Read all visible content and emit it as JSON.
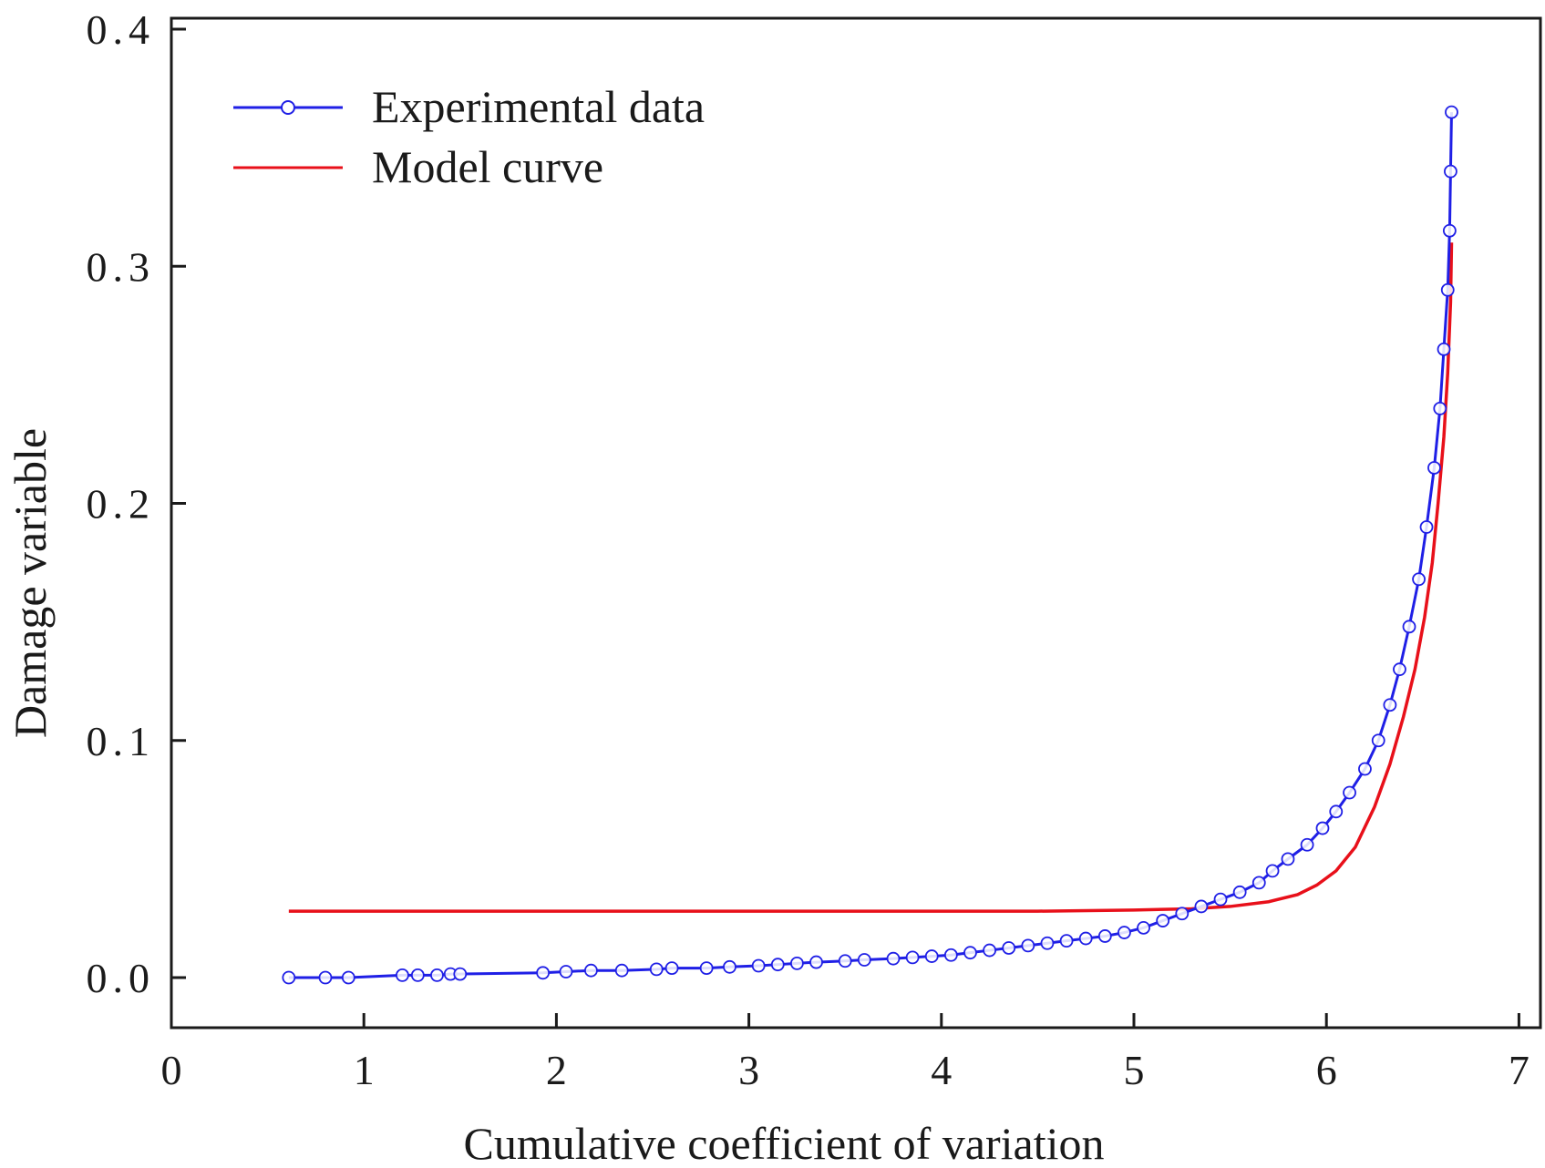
{
  "chart_data": {
    "type": "line",
    "title": "",
    "xlabel": "Cumulative coefficient of variation",
    "ylabel": "Damage  variable",
    "xlim": [
      0,
      7.1
    ],
    "ylim": [
      -0.02,
      0.405
    ],
    "x_ticks": [
      0,
      1,
      2,
      3,
      4,
      5,
      6,
      7
    ],
    "x_tick_labels": [
      "0",
      "1",
      "2",
      "3",
      "4",
      "5",
      "6",
      "7"
    ],
    "y_ticks": [
      0.0,
      0.1,
      0.2,
      0.3,
      0.4
    ],
    "y_tick_labels": [
      "0.0",
      "0.1",
      "0.2",
      "0.3",
      "0.4"
    ],
    "grid": false,
    "legend_position": "top-left",
    "series": [
      {
        "name": "Experimental data",
        "color": "#1f1fe6",
        "marker": "open-circle",
        "x": [
          0.61,
          0.8,
          0.92,
          1.2,
          1.28,
          1.38,
          1.45,
          1.5,
          1.93,
          2.05,
          2.18,
          2.34,
          2.52,
          2.6,
          2.78,
          2.9,
          3.05,
          3.15,
          3.25,
          3.35,
          3.5,
          3.6,
          3.75,
          3.85,
          3.95,
          4.05,
          4.15,
          4.25,
          4.35,
          4.45,
          4.55,
          4.65,
          4.75,
          4.85,
          4.95,
          5.05,
          5.15,
          5.25,
          5.35,
          5.45,
          5.55,
          5.65,
          5.72,
          5.8,
          5.9,
          5.98,
          6.05,
          6.12,
          6.2,
          6.27,
          6.33,
          6.38,
          6.43,
          6.48,
          6.52,
          6.56,
          6.59,
          6.61,
          6.63,
          6.64,
          6.645,
          6.65
        ],
        "y": [
          0.0,
          0.0,
          0.0,
          0.001,
          0.001,
          0.001,
          0.0015,
          0.0015,
          0.002,
          0.0025,
          0.003,
          0.003,
          0.0035,
          0.004,
          0.004,
          0.0045,
          0.005,
          0.0055,
          0.006,
          0.0065,
          0.007,
          0.0075,
          0.008,
          0.0085,
          0.009,
          0.0095,
          0.0105,
          0.0115,
          0.0125,
          0.0135,
          0.0145,
          0.0155,
          0.0165,
          0.0175,
          0.019,
          0.021,
          0.024,
          0.027,
          0.03,
          0.033,
          0.036,
          0.04,
          0.045,
          0.05,
          0.056,
          0.063,
          0.07,
          0.078,
          0.088,
          0.1,
          0.115,
          0.13,
          0.148,
          0.168,
          0.19,
          0.215,
          0.24,
          0.265,
          0.29,
          0.315,
          0.34,
          0.365
        ]
      },
      {
        "name": "Model curve",
        "color": "#e8101a",
        "marker": "none",
        "x": [
          0.61,
          1.5,
          2.5,
          3.5,
          4.5,
          5.0,
          5.3,
          5.5,
          5.7,
          5.85,
          5.95,
          6.05,
          6.15,
          6.25,
          6.33,
          6.4,
          6.46,
          6.51,
          6.55,
          6.58,
          6.61,
          6.63,
          6.645,
          6.65
        ],
        "y": [
          0.028,
          0.028,
          0.028,
          0.028,
          0.028,
          0.0285,
          0.029,
          0.03,
          0.032,
          0.035,
          0.039,
          0.045,
          0.055,
          0.072,
          0.09,
          0.11,
          0.13,
          0.152,
          0.175,
          0.2,
          0.228,
          0.255,
          0.285,
          0.31
        ]
      }
    ]
  }
}
